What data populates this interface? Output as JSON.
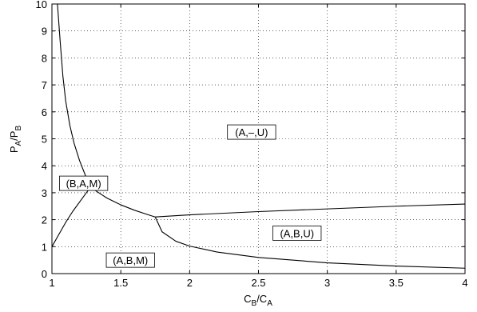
{
  "chart_data": {
    "type": "line",
    "xlabel": {
      "main": "C",
      "sub1": "B",
      "slash": "/C",
      "sub2": "A"
    },
    "ylabel": {
      "main": "P",
      "sub1": "A",
      "slash": "/P",
      "sub2": "B"
    },
    "xlim": [
      1,
      4
    ],
    "ylim": [
      0,
      10
    ],
    "xticks": [
      1,
      1.5,
      2,
      2.5,
      3,
      3.5,
      4
    ],
    "xtick_labels": [
      "1",
      "1.5",
      "2",
      "2.5",
      "3",
      "3.5",
      "4"
    ],
    "yticks": [
      0,
      1,
      2,
      3,
      4,
      5,
      6,
      7,
      8,
      9,
      10
    ],
    "ytick_labels": [
      "0",
      "1",
      "2",
      "3",
      "4",
      "5",
      "6",
      "7",
      "8",
      "9",
      "10"
    ],
    "grid": true,
    "series": [
      {
        "x": [
          1.04,
          1.06,
          1.08,
          1.1,
          1.13,
          1.16,
          1.2,
          1.25,
          1.28
        ],
        "y": [
          10.0,
          8.6,
          7.3,
          6.4,
          5.5,
          4.85,
          4.2,
          3.55,
          3.2
        ]
      },
      {
        "x": [
          1.0,
          1.05,
          1.1,
          1.15,
          1.2,
          1.25,
          1.28
        ],
        "y": [
          1.0,
          1.45,
          1.9,
          2.3,
          2.65,
          3.0,
          3.2
        ]
      },
      {
        "x": [
          1.28,
          1.4,
          1.5,
          1.6,
          1.7,
          1.75
        ],
        "y": [
          3.2,
          2.8,
          2.55,
          2.35,
          2.18,
          2.1
        ]
      },
      {
        "x": [
          1.75,
          2.0,
          2.5,
          3.0,
          3.5,
          4.0
        ],
        "y": [
          2.1,
          2.18,
          2.3,
          2.4,
          2.5,
          2.58
        ]
      },
      {
        "x": [
          1.75,
          1.8,
          1.9,
          2.0,
          2.2,
          2.5,
          3.0,
          3.5,
          4.0
        ],
        "y": [
          2.1,
          1.55,
          1.2,
          1.02,
          0.8,
          0.6,
          0.4,
          0.28,
          0.2
        ]
      }
    ],
    "annotations": [
      {
        "text": "(A,–,U)",
        "x": 2.45,
        "y": 5.25
      },
      {
        "text": "(B,A,M)",
        "x": 1.23,
        "y": 3.35
      },
      {
        "text": "(A,B,U)",
        "x": 2.78,
        "y": 1.5
      },
      {
        "text": "(A,B,M)",
        "x": 1.57,
        "y": 0.5
      }
    ]
  }
}
